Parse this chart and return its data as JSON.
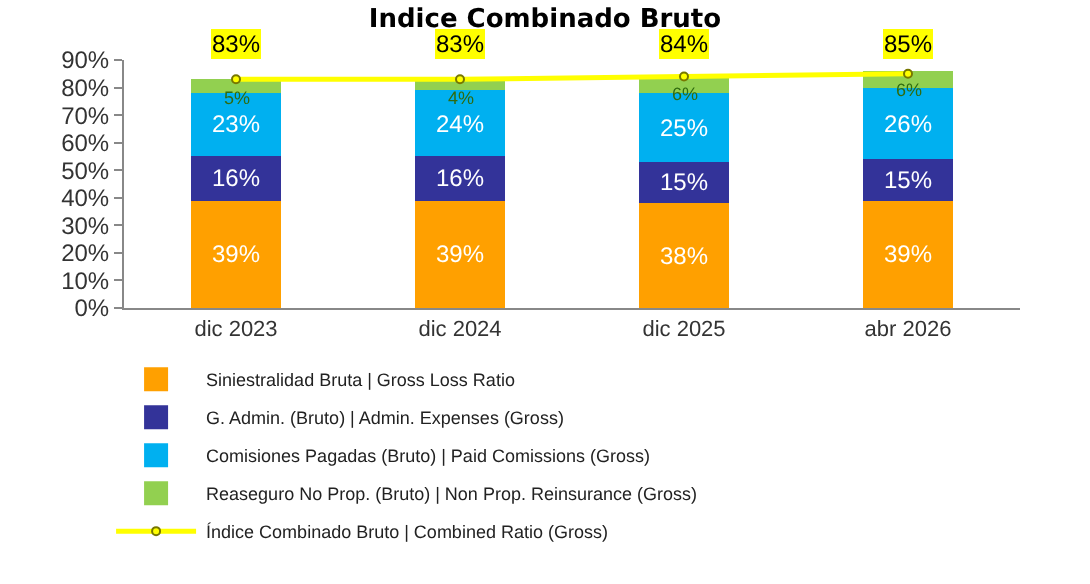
{
  "chart_data": {
    "type": "bar",
    "title": "Indice Combinado Bruto",
    "stacked": true,
    "legend": "bottom",
    "grid": false,
    "categories": [
      "dic 2023",
      "dic 2024",
      "dic 2025",
      "abr 2026"
    ],
    "ylim": [
      0,
      90
    ],
    "yticks": [
      {
        "value": 0,
        "label": "0%"
      },
      {
        "value": 10,
        "label": "10%"
      },
      {
        "value": 20,
        "label": "20%"
      },
      {
        "value": 30,
        "label": "30%"
      },
      {
        "value": 40,
        "label": "40%"
      },
      {
        "value": 50,
        "label": "50%"
      },
      {
        "value": 60,
        "label": "60%"
      },
      {
        "value": 70,
        "label": "70%"
      },
      {
        "value": 80,
        "label": "80%"
      },
      {
        "value": 90,
        "label": "90%"
      }
    ],
    "series": [
      {
        "name": "Siniestralidad Bruta | Gross Loss Ratio",
        "color": "#ffa000",
        "values": [
          39,
          39,
          38,
          39
        ],
        "value_labels": [
          "39%",
          "39%",
          "38%",
          "39%"
        ]
      },
      {
        "name": "G. Admin. (Bruto) | Admin. Expenses (Gross)",
        "color": "#333399",
        "values": [
          16,
          16,
          15,
          15
        ],
        "value_labels": [
          "16%",
          "16%",
          "15%",
          "15%"
        ]
      },
      {
        "name": "Comisiones Pagadas (Bruto) | Paid Comissions (Gross)",
        "color": "#00b0f0",
        "values": [
          23,
          24,
          25,
          26
        ],
        "value_labels": [
          "23%",
          "24%",
          "25%",
          "26%"
        ]
      },
      {
        "name": "Reaseguro No Prop. (Bruto) | Non Prop. Reinsurance (Gross)",
        "color": "#92d050",
        "values": [
          5,
          4,
          6,
          6
        ],
        "value_labels": [
          "5%",
          "4%",
          "6%",
          "6%"
        ]
      },
      {
        "name": "Índice Combinado Bruto | Combined Ratio (Gross)",
        "type": "line",
        "color": "#ffff00",
        "marker": "circle",
        "values": [
          83,
          83,
          84,
          85
        ],
        "value_labels": [
          "83%",
          "83%",
          "84%",
          "85%"
        ]
      }
    ]
  }
}
